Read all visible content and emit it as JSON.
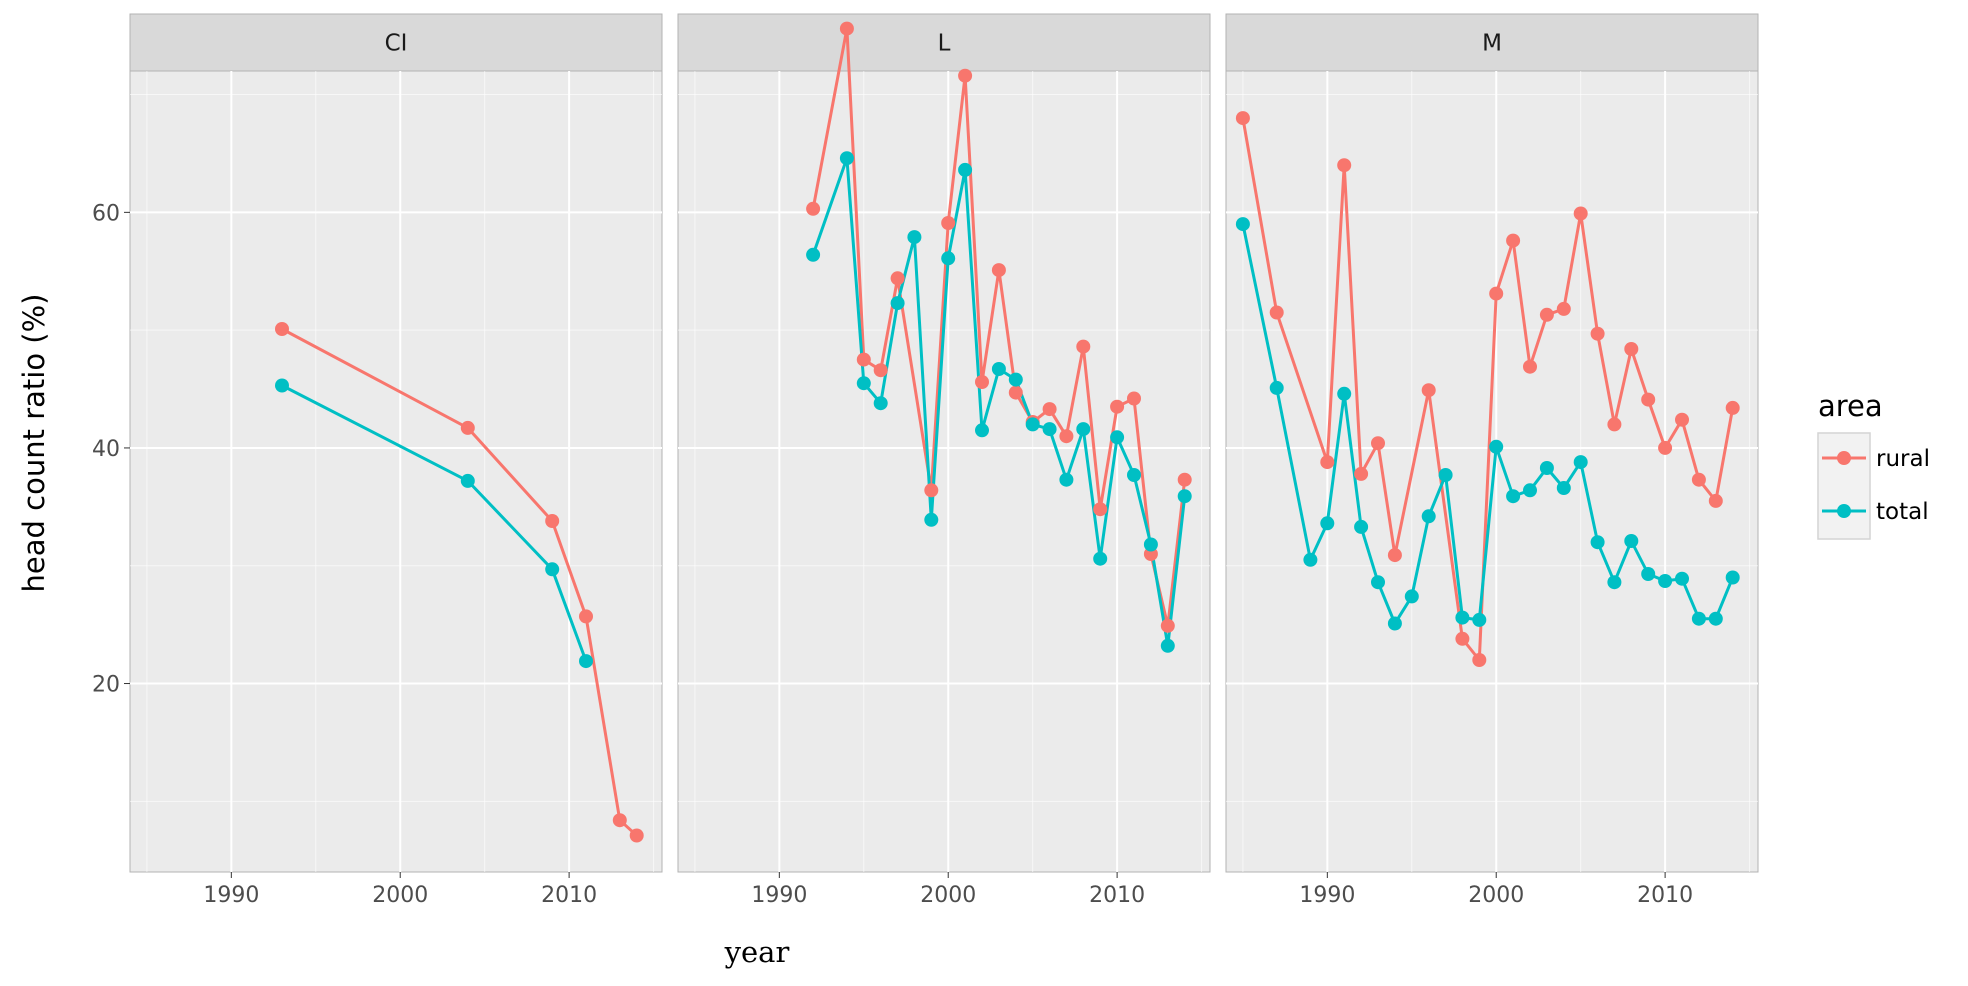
{
  "chart_data": {
    "type": "line",
    "xlabel": "year",
    "ylabel": "head count ratio (%)",
    "xlim": [
      1984,
      2015.5
    ],
    "ylim": [
      4,
      72
    ],
    "x_ticks": [
      1990,
      2000,
      2010
    ],
    "x_tick_labels": [
      "1990",
      "2000",
      "2010"
    ],
    "y_ticks": [
      20,
      40,
      60
    ],
    "y_tick_labels": [
      "20",
      "40",
      "60"
    ],
    "grid": true,
    "legend": {
      "title": "area",
      "position": "right",
      "entries": [
        {
          "name": "rural",
          "color": "#F8766D"
        },
        {
          "name": "total",
          "color": "#00BFC4"
        }
      ]
    },
    "colors": {
      "rural": "#F8766D",
      "total": "#00BFC4",
      "panel_bg": "#EBEBEB",
      "strip_bg": "#D9D9D9"
    },
    "panels": [
      {
        "label": "CI",
        "series": [
          {
            "name": "rural",
            "x": [
              1993,
              2004,
              2009,
              2011,
              2013,
              2014
            ],
            "y": [
              50.1,
              41.7,
              33.8,
              25.7,
              8.4,
              7.1
            ]
          },
          {
            "name": "total",
            "x": [
              1993,
              2004,
              2009,
              2011
            ],
            "y": [
              45.3,
              37.2,
              29.7,
              21.9
            ]
          }
        ]
      },
      {
        "label": "L",
        "series": [
          {
            "name": "rural",
            "x": [
              1992,
              1994,
              1995,
              1996,
              1997,
              1999,
              2000,
              2001,
              2002,
              2003,
              2004,
              2005,
              2006,
              2007,
              2008,
              2009,
              2010,
              2011,
              2012,
              2013,
              2014
            ],
            "y": [
              60.3,
              75.6,
              47.5,
              46.6,
              54.4,
              36.4,
              59.1,
              71.6,
              45.6,
              55.1,
              44.7,
              42.2,
              43.3,
              41.0,
              48.6,
              34.8,
              43.5,
              44.2,
              31.0,
              24.9,
              37.3
            ]
          },
          {
            "name": "total",
            "x": [
              1992,
              1994,
              1995,
              1996,
              1997,
              1998,
              1999,
              2000,
              2001,
              2002,
              2003,
              2004,
              2005,
              2006,
              2007,
              2008,
              2009,
              2010,
              2011,
              2012,
              2013,
              2014
            ],
            "y": [
              56.4,
              64.6,
              45.5,
              43.8,
              52.3,
              57.9,
              33.9,
              56.1,
              63.6,
              41.5,
              46.7,
              45.8,
              42.0,
              41.6,
              37.3,
              41.6,
              30.6,
              40.9,
              37.7,
              31.8,
              23.2,
              35.9
            ]
          }
        ]
      },
      {
        "label": "M",
        "series": [
          {
            "name": "rural",
            "x": [
              1985,
              1987,
              1990,
              1991,
              1992,
              1993,
              1994,
              1996,
              1998,
              1999,
              2000,
              2001,
              2002,
              2003,
              2004,
              2005,
              2006,
              2007,
              2008,
              2009,
              2010,
              2011,
              2012,
              2013,
              2014
            ],
            "y": [
              68.0,
              51.5,
              38.8,
              64.0,
              37.8,
              40.4,
              30.9,
              44.9,
              23.8,
              22.0,
              53.1,
              57.6,
              46.9,
              51.3,
              51.8,
              59.9,
              49.7,
              42.0,
              48.4,
              44.1,
              40.0,
              42.4,
              37.3,
              35.5,
              43.4
            ]
          },
          {
            "name": "total",
            "x": [
              1985,
              1987,
              1989,
              1990,
              1991,
              1992,
              1993,
              1994,
              1995,
              1996,
              1997,
              1998,
              1999,
              2000,
              2001,
              2002,
              2003,
              2004,
              2005,
              2006,
              2007,
              2008,
              2009,
              2010,
              2011,
              2012,
              2013,
              2014
            ],
            "y": [
              59.0,
              45.1,
              30.5,
              33.6,
              44.6,
              33.3,
              28.6,
              25.1,
              27.4,
              34.2,
              37.7,
              25.6,
              25.4,
              40.1,
              35.9,
              36.4,
              38.3,
              36.6,
              38.8,
              32.0,
              28.6,
              32.1,
              29.3,
              28.7,
              28.9,
              25.5,
              25.5,
              29.0
            ]
          }
        ]
      }
    ]
  }
}
